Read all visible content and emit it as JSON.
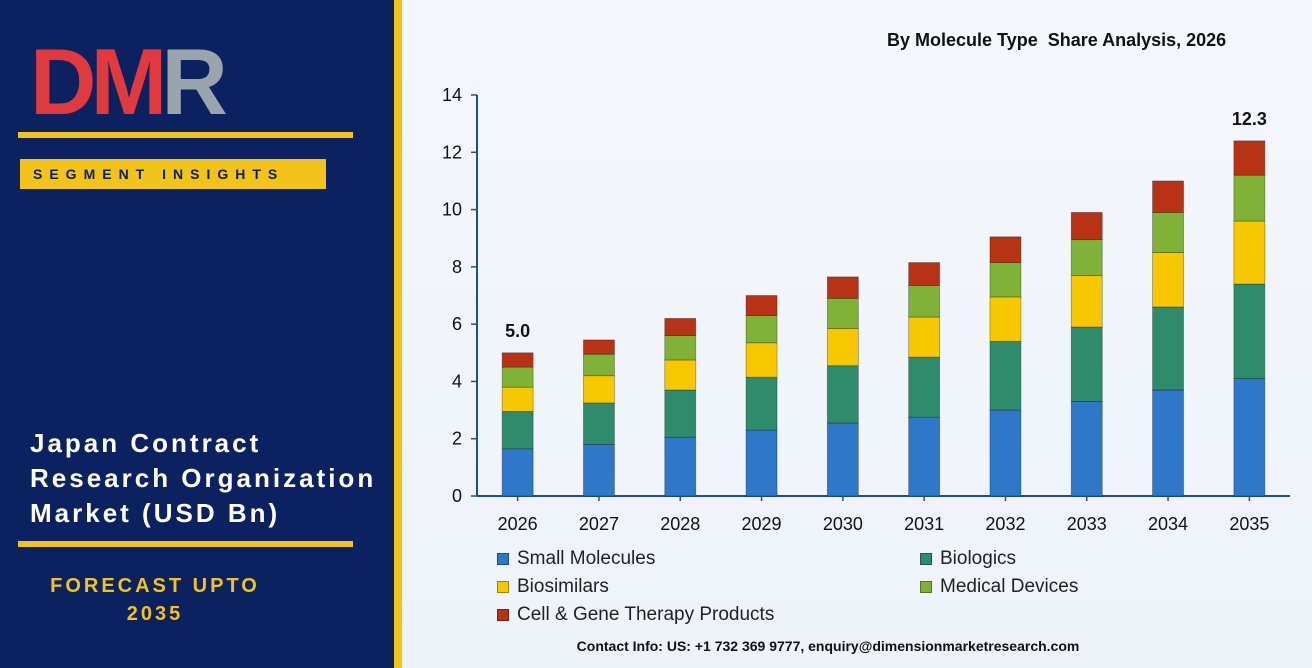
{
  "brand": {
    "logo_text": "DMR",
    "segment_label": "SEGMENT INSIGHTS",
    "title_lines": [
      "Japan Contract",
      "Research Organization",
      "Market (USD Bn)"
    ],
    "forecast_lines": [
      "FORECAST UPTO",
      "2035"
    ],
    "colors": {
      "navy": "#0c2160",
      "gold": "#f2c318",
      "logo_red": "#e03a3e",
      "logo_gray": "#9aa4ad"
    }
  },
  "chart_data": {
    "type": "bar",
    "stacked": true,
    "title": "By Molecule Type  Share Analysis, 2026",
    "categories": [
      "2026",
      "2027",
      "2028",
      "2029",
      "2030",
      "2031",
      "2032",
      "2033",
      "2034",
      "2035"
    ],
    "series": [
      {
        "name": "Small Molecules",
        "color": "#2f77c9",
        "values": [
          1.65,
          1.8,
          2.05,
          2.3,
          2.55,
          2.75,
          3.0,
          3.3,
          3.7,
          4.1
        ]
      },
      {
        "name": "Biologics",
        "color": "#2e8b6c",
        "values": [
          1.3,
          1.45,
          1.65,
          1.85,
          2.0,
          2.1,
          2.4,
          2.6,
          2.9,
          3.3
        ]
      },
      {
        "name": "Biosimilars",
        "color": "#f7c800",
        "values": [
          0.85,
          0.95,
          1.05,
          1.2,
          1.3,
          1.4,
          1.55,
          1.8,
          1.9,
          2.2
        ]
      },
      {
        "name": "Medical Devices",
        "color": "#7fb236",
        "values": [
          0.7,
          0.75,
          0.85,
          0.95,
          1.05,
          1.1,
          1.2,
          1.25,
          1.4,
          1.6
        ]
      },
      {
        "name": "Cell & Gene Therapy Products",
        "color": "#b83216",
        "values": [
          0.5,
          0.5,
          0.6,
          0.7,
          0.75,
          0.8,
          0.9,
          0.95,
          1.1,
          1.2
        ]
      }
    ],
    "data_labels": [
      {
        "category": "2026",
        "text": "5.0"
      },
      {
        "category": "2035",
        "text": "12.3"
      }
    ],
    "ylim": [
      0,
      14
    ],
    "yticks": [
      0,
      2,
      4,
      6,
      8,
      10,
      12,
      14
    ],
    "grid": false,
    "legend_position": "bottom"
  },
  "footer": {
    "contact": "Contact Info: US: +1 732 369 9777, enquiry@dimensionmarketresearch.com"
  }
}
